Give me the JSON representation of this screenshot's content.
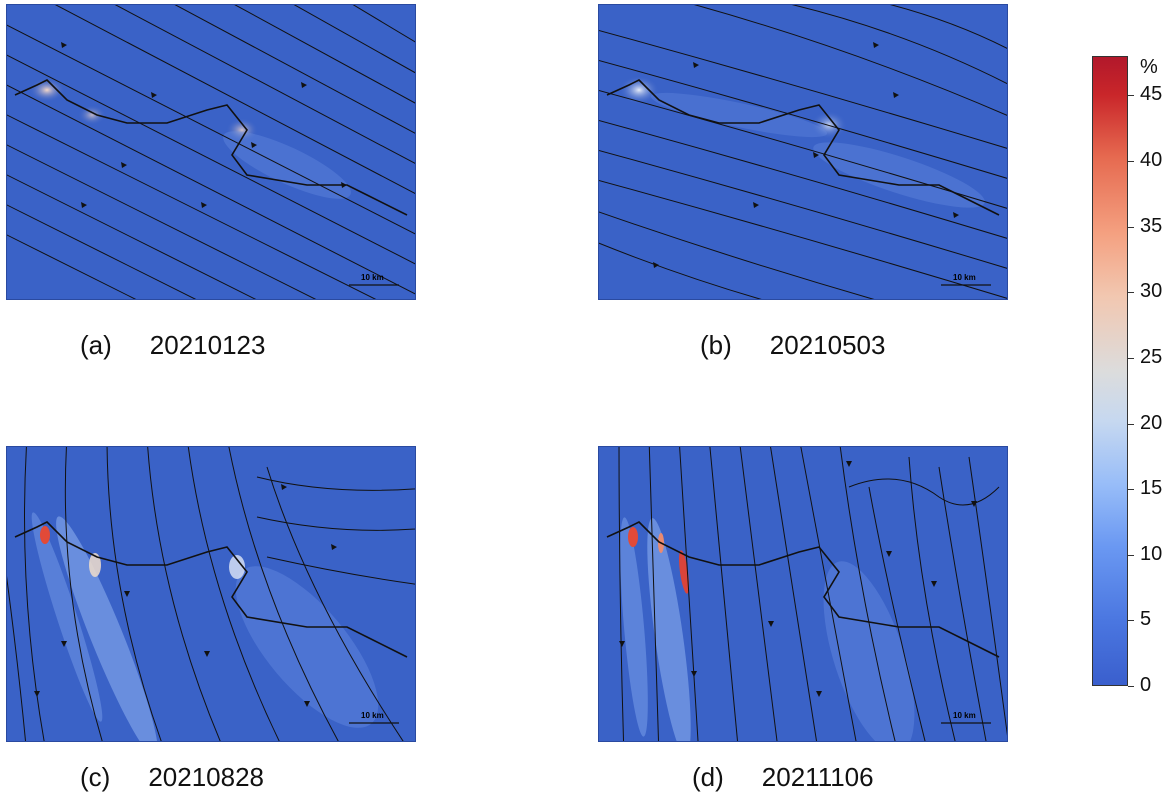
{
  "panels": [
    {
      "letter": "(a)",
      "date": "20210123",
      "scale_label": "10 km"
    },
    {
      "letter": "(b)",
      "date": "20210503",
      "scale_label": "10 km"
    },
    {
      "letter": "(c)",
      "date": "20210828",
      "scale_label": "10 km"
    },
    {
      "letter": "(d)",
      "date": "20211106",
      "scale_label": "10 km"
    }
  ],
  "colorbar": {
    "unit": "%",
    "ticks": [
      "0",
      "5",
      "10",
      "15",
      "20",
      "25",
      "30",
      "35",
      "40",
      "45"
    ],
    "min": 0,
    "max": 48,
    "colors": [
      "#3a5fcd",
      "#b2182b"
    ]
  }
}
